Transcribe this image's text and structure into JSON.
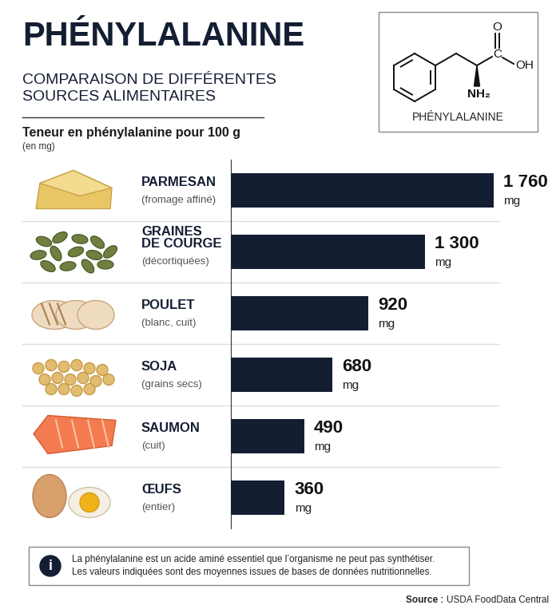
{
  "chart_data": {
    "type": "bar",
    "orientation": "horizontal",
    "title": "PHÉNYLALANINE",
    "subtitle": "COMPARAISON DE DIFFÉRENTES\nSOURCES ALIMENTAIRES",
    "xlabel": "Teneur en phénylalanine pour 100 g",
    "xlabel_unit": "(en mg)",
    "categories": [
      "PARMESAN",
      "GRAINES\nDE COURGE",
      "POULET",
      "SOJA",
      "SAUMON",
      "ŒUFS"
    ],
    "descriptions": [
      "(fromage affiné)",
      "(décortiquées)",
      "(blanc, cuit)",
      "(grains secs)",
      "(cuit)",
      "(entier)"
    ],
    "values": [
      1760,
      1300,
      920,
      680,
      490,
      360
    ],
    "value_labels": [
      "1 760\nmg",
      "1 300\nmg",
      "920\nmg",
      "680\nmg",
      "490\nmg",
      "360\nmg"
    ],
    "color": "#141e33",
    "xlim": [
      0,
      2200
    ],
    "data_labels": true,
    "tick_labels": false,
    "grid": false
  },
  "molecule": {
    "label": "PHÉNYLALANINE",
    "atoms": {
      "carbonyl": "O",
      "carbon": "C",
      "hydroxyl": "OH",
      "amine": "NH₂"
    }
  },
  "note": {
    "icon": "i",
    "text": "La phénylalanine est un acide aminé essentiel que l’organisme ne peut pas synthétiser.\nLes valeurs indiquées sont des moyennes issues de bases de données nutritionnelles."
  },
  "source": {
    "label": "Source :",
    "text": "USDA FoodData Central"
  }
}
